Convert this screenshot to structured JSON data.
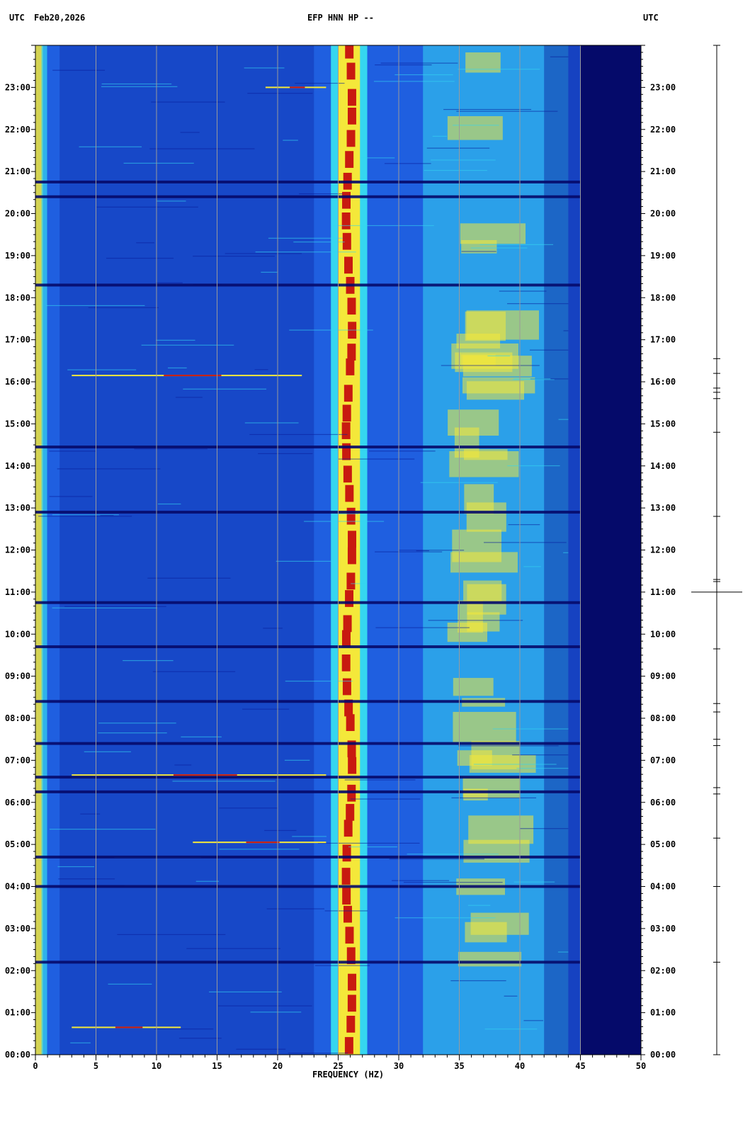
{
  "header": {
    "left_tz": "UTC",
    "date": "Feb20,2026",
    "station": "EFP HNN HP --",
    "right_tz": "UTC"
  },
  "xaxis": {
    "label": "FREQUENCY (HZ)",
    "ticks": [
      "0",
      "5",
      "10",
      "15",
      "20",
      "25",
      "30",
      "35",
      "40",
      "45",
      "50"
    ],
    "range": [
      0,
      50
    ]
  },
  "yaxis": {
    "ticks": [
      "00:00",
      "01:00",
      "02:00",
      "03:00",
      "04:00",
      "05:00",
      "06:00",
      "07:00",
      "08:00",
      "09:00",
      "10:00",
      "11:00",
      "12:00",
      "13:00",
      "14:00",
      "15:00",
      "16:00",
      "17:00",
      "18:00",
      "19:00",
      "20:00",
      "21:00",
      "22:00",
      "23:00"
    ],
    "range_hours": [
      0,
      24
    ]
  },
  "colors": {
    "background_low": "#0a1f9c",
    "mid_blue": "#1f5fe0",
    "cyan": "#35d6f0",
    "yellow": "#f4e83a",
    "red": "#c81a10",
    "grid": "#9a9a9a",
    "dark_band": "#050a6a"
  },
  "chart_data": {
    "type": "heatmap",
    "title": "EFP HNN HP --",
    "xlabel": "FREQUENCY (HZ)",
    "ylabel": "",
    "xlim": [
      0,
      50
    ],
    "ylim_hours": [
      0,
      24
    ],
    "features": {
      "strong_band_hz": [
        25.0,
        26.8
      ],
      "energetic_zone_hz": [
        34.0,
        41.0
      ],
      "rolloff_hz": 45,
      "low_freq_edge_hz": [
        0,
        0.5
      ]
    },
    "dark_horizontal_bands_hours": [
      20.75,
      20.4,
      18.3,
      14.45,
      12.9,
      10.75,
      9.7,
      8.4,
      7.4,
      6.6,
      6.25,
      4.7,
      4.0,
      2.2
    ],
    "bright_events": [
      {
        "time_h": 0.65,
        "f_start": 3,
        "f_end": 12
      },
      {
        "time_h": 5.05,
        "f_start": 13,
        "f_end": 24
      },
      {
        "time_h": 6.65,
        "f_start": 3,
        "f_end": 24
      },
      {
        "time_h": 16.15,
        "f_start": 3,
        "f_end": 22
      },
      {
        "time_h": 23.0,
        "f_start": 19,
        "f_end": 24
      }
    ],
    "seismogram_ticks_hours": [
      0.0,
      2.2,
      4.0,
      5.15,
      6.2,
      6.35,
      7.35,
      7.5,
      8.15,
      8.35,
      9.65,
      11.0,
      11.25,
      11.3,
      12.8,
      14.8,
      15.6,
      15.75,
      15.85,
      16.2,
      16.55,
      24.0
    ]
  }
}
